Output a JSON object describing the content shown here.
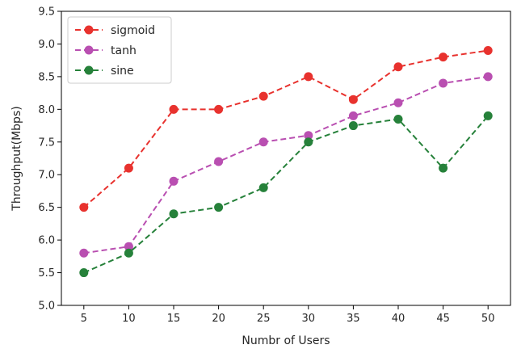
{
  "chart_data": {
    "type": "line",
    "title": "",
    "xlabel": "Numbr of Users",
    "ylabel": "Throughput(Mbps)",
    "x": [
      5,
      10,
      15,
      20,
      25,
      30,
      35,
      40,
      45,
      50
    ],
    "x_tick_labels": [
      "5",
      "10",
      "15",
      "20",
      "25",
      "30",
      "35",
      "40",
      "45",
      "50"
    ],
    "y_tick_labels": [
      "5.0",
      "5.5",
      "6.0",
      "6.5",
      "7.0",
      "7.5",
      "8.0",
      "8.5",
      "9.0",
      "9.5"
    ],
    "xlim": [
      2.5,
      52.5
    ],
    "ylim": [
      5.0,
      9.5
    ],
    "grid": false,
    "legend_position": "top-left",
    "line_style": "dashed",
    "marker": "circle",
    "series": [
      {
        "name": "sigmoid",
        "color": "#e8322e",
        "values": [
          6.5,
          7.1,
          8.0,
          8.0,
          8.2,
          8.5,
          8.15,
          8.65,
          8.8,
          8.9
        ]
      },
      {
        "name": "tanh",
        "color": "#b94fb1",
        "values": [
          5.8,
          5.9,
          6.9,
          7.2,
          7.5,
          7.6,
          7.9,
          8.1,
          8.4,
          8.5
        ]
      },
      {
        "name": "sine",
        "color": "#26813a",
        "values": [
          5.5,
          5.8,
          6.4,
          6.5,
          6.8,
          7.5,
          7.75,
          7.85,
          7.1,
          7.9
        ]
      }
    ]
  }
}
